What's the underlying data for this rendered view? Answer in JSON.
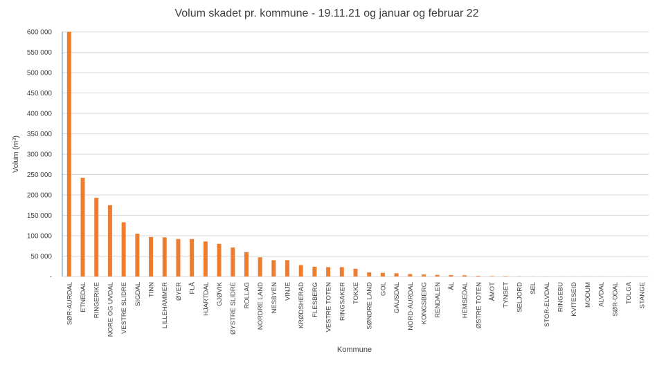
{
  "chart_data": {
    "type": "bar",
    "title": "Volum skadet pr. kommune  - 19.11.21 og januar og februar 22",
    "xlabel": "Kommune",
    "ylabel": "Volum (m³)",
    "ylabel_main": "Volum (m",
    "ylabel_sup": "3",
    "ylabel_end": ")",
    "ylim": [
      0,
      600000
    ],
    "yticks": [
      0,
      50000,
      100000,
      150000,
      200000,
      250000,
      300000,
      350000,
      400000,
      450000,
      500000,
      550000,
      600000
    ],
    "ytick_labels": [
      "-",
      "50 000",
      "100 000",
      "150 000",
      "200 000",
      "250 000",
      "300 000",
      "350 000",
      "400 000",
      "450 000",
      "500 000",
      "550 000",
      "600 000"
    ],
    "categories": [
      "SØR-AURDAL",
      "ETNEDAL",
      "RINGERIKE",
      "NORE OG UVDAL",
      "VESTRE SLIDRE",
      "SIGDAL",
      "TINN",
      "LILLEHAMMER",
      "ØYER",
      "FLÅ",
      "HJARTDAL",
      "GJØVIK",
      "ØYSTRE SLIDRE",
      "ROLLAG",
      "NORDRE LAND",
      "NESBYEN",
      "VINJE",
      "KRØDSHERAD",
      "FLESBERG",
      "VESTRE TOTEN",
      "RINGSAKER",
      "TOKKE",
      "SØNDRE LAND",
      "GOL",
      "GAUSDAL",
      "NORD-AURDAL",
      "KONGSBERG",
      "RENDALEN",
      "ÅL",
      "HEMSEDAL",
      "ØSTRE TOTEN",
      "ÅMOT",
      "TYNSET",
      "SELJORD",
      "SEL",
      "STOR-ELVDAL",
      "RINGEBU",
      "KVITESEID",
      "MODUM",
      "ALVDAL",
      "SØR-ODAL",
      "TOLGA",
      "STANGE"
    ],
    "values": [
      600000,
      242000,
      193000,
      175000,
      133000,
      105000,
      97000,
      96000,
      92000,
      92000,
      86000,
      80000,
      71000,
      60000,
      47000,
      40000,
      40000,
      28000,
      24000,
      23000,
      23000,
      19000,
      10000,
      9000,
      8000,
      6000,
      5000,
      4000,
      3500,
      3000,
      1500,
      1000,
      1000,
      500,
      300,
      300,
      200,
      200,
      200,
      200,
      100,
      100,
      100
    ],
    "bar_color": "#ED7D31",
    "grid": true,
    "grid_color": "#D9D9D9",
    "axis_color": "#4A90C2",
    "legend": "none"
  }
}
